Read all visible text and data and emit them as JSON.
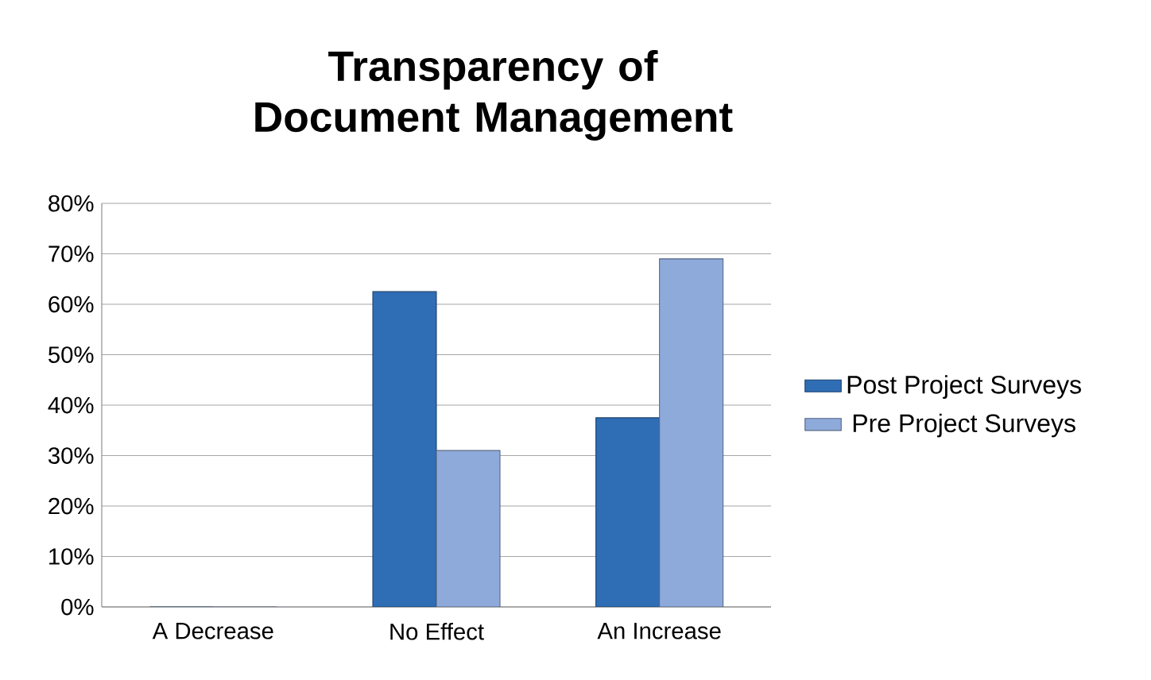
{
  "chart_data": {
    "type": "bar",
    "title": "Transparency of Document Management",
    "categories": [
      "A Decrease",
      "No Effect",
      "An Increase"
    ],
    "series": [
      {
        "name": "Post Project Surveys",
        "color": "#2f6db5",
        "values": [
          0,
          62.5,
          37.5
        ]
      },
      {
        "name": "Pre Project Surveys",
        "color": "#8eaadb",
        "values": [
          0,
          31,
          69
        ]
      }
    ],
    "ylim": [
      0,
      80
    ],
    "yticks": [
      {
        "value": 0,
        "label": "0%"
      },
      {
        "value": 10,
        "label": "10%"
      },
      {
        "value": 20,
        "label": "20%"
      },
      {
        "value": 30,
        "label": "30%"
      },
      {
        "value": 40,
        "label": "40%"
      },
      {
        "value": 50,
        "label": "50%"
      },
      {
        "value": 60,
        "label": "60%"
      },
      {
        "value": 70,
        "label": "70%"
      },
      {
        "value": 80,
        "label": "80%"
      }
    ],
    "grid": "y",
    "legend": "right"
  }
}
